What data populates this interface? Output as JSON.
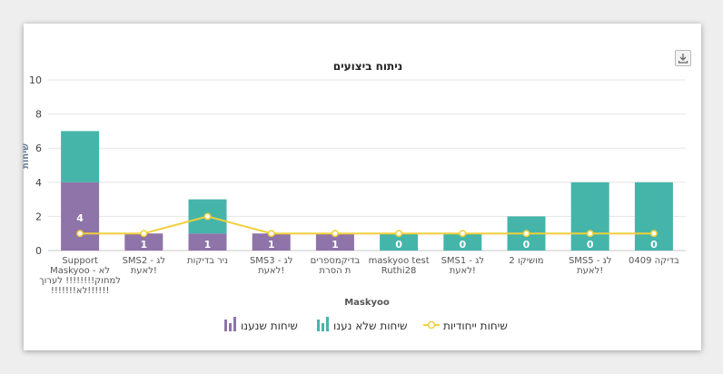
{
  "chart_data": {
    "type": "bar",
    "title": "ניתוח ביצועים",
    "xlabel": "Maskyoo",
    "ylabel": "שיחות",
    "ylim": [
      0,
      10
    ],
    "yticks": [
      0,
      2,
      4,
      6,
      8,
      10
    ],
    "stacked": true,
    "categories": [
      [
        "Support",
        "Maskyoo - לא",
        "למחוק!!!!!!!! לערוך",
        "!!!!!!!לא!!!!!!"
      ],
      [
        "SMS2 - לג",
        "לאעת!"
      ],
      [
        "ניר בדיקות",
        ""
      ],
      [
        "SMS3 - לג",
        "לאעת!"
      ],
      [
        "בדיקמספרים",
        "ת הסרת"
      ],
      [
        "maskyoo test",
        "Ruthi28"
      ],
      [
        "SMS1 - לג",
        "לאעת!"
      ],
      [
        "מושיקו 2"
      ],
      [
        "SMS5 - לג",
        "לאעת!"
      ],
      [
        "בדיקה 0409"
      ]
    ],
    "series": [
      {
        "name": "שיחות שנענו",
        "type": "bar",
        "color": "#8e74a8",
        "values": [
          4,
          1,
          1,
          1,
          1,
          0,
          0,
          0,
          0,
          0
        ]
      },
      {
        "name": "שיחות שלא נענו",
        "type": "bar",
        "color": "#45b5aa",
        "values": [
          3,
          0,
          2,
          0,
          0,
          1,
          1,
          2,
          4,
          4
        ]
      },
      {
        "name": "שיחות ייחודיות",
        "type": "line",
        "color": "#f1cf3a",
        "values": [
          1,
          1,
          2,
          1,
          1,
          1,
          1,
          1,
          1,
          1
        ]
      }
    ],
    "data_labels": [
      "4",
      "1",
      "1",
      "1",
      "1",
      "0",
      "0",
      "0",
      "0",
      "0"
    ],
    "grid": true,
    "legend_position": "bottom"
  },
  "toolbar": {
    "export_icon": "download-icon"
  }
}
